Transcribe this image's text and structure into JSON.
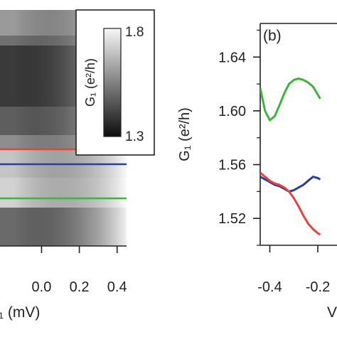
{
  "chart_data": [
    {
      "type": "heatmap",
      "panel": "left",
      "xlabel_partial": "₁ (mV)",
      "x_ticks": [
        "0.0",
        "0.2",
        "0.4"
      ],
      "x_tick_values": [
        0.0,
        0.2,
        0.4
      ],
      "xlim": [
        -0.22,
        0.45
      ],
      "colorbar": {
        "label": "G₁ (e²/h)",
        "max_label": "1.8",
        "min_label": "1.3",
        "range": [
          1.3,
          1.8
        ],
        "colormap": "grayscale"
      },
      "cut_lines": [
        {
          "color": "#e8423c"
        },
        {
          "color": "#2a3fa0"
        },
        {
          "color": "#3db43a"
        }
      ]
    },
    {
      "type": "line",
      "panel": "right",
      "panel_label": "(b)",
      "ylabel": "G₁ (e²/h)",
      "xlabel_partial": "V",
      "x_ticks": [
        "-0.4",
        "-0.2"
      ],
      "x_tick_values": [
        -0.4,
        -0.2
      ],
      "y_ticks": [
        "1.52",
        "1.56",
        "1.60",
        "1.64"
      ],
      "y_tick_values": [
        1.52,
        1.56,
        1.6,
        1.64
      ],
      "xlim": [
        -0.44,
        -0.12
      ],
      "ylim": [
        1.5,
        1.665
      ],
      "series": [
        {
          "color": "#3db43a",
          "x": [
            -0.44,
            -0.42,
            -0.4,
            -0.38,
            -0.36,
            -0.34,
            -0.32,
            -0.3,
            -0.28,
            -0.26,
            -0.24,
            -0.22,
            -0.2,
            -0.19
          ],
          "y": [
            1.617,
            1.6,
            1.593,
            1.596,
            1.604,
            1.613,
            1.62,
            1.623,
            1.624,
            1.623,
            1.621,
            1.618,
            1.612,
            1.609
          ]
        },
        {
          "color": "#2a3fa0",
          "x": [
            -0.44,
            -0.42,
            -0.4,
            -0.38,
            -0.36,
            -0.34,
            -0.32,
            -0.3,
            -0.28,
            -0.26,
            -0.24,
            -0.22,
            -0.2,
            -0.19
          ],
          "y": [
            1.551,
            1.549,
            1.547,
            1.545,
            1.544,
            1.542,
            1.54,
            1.541,
            1.543,
            1.545,
            1.548,
            1.551,
            1.55,
            1.549
          ]
        },
        {
          "color": "#e8423c",
          "x": [
            -0.44,
            -0.42,
            -0.4,
            -0.38,
            -0.36,
            -0.34,
            -0.32,
            -0.3,
            -0.28,
            -0.26,
            -0.24,
            -0.22,
            -0.2,
            -0.19
          ],
          "y": [
            1.554,
            1.551,
            1.548,
            1.546,
            1.545,
            1.543,
            1.54,
            1.535,
            1.529,
            1.522,
            1.516,
            1.512,
            1.509,
            1.508
          ]
        }
      ]
    }
  ]
}
